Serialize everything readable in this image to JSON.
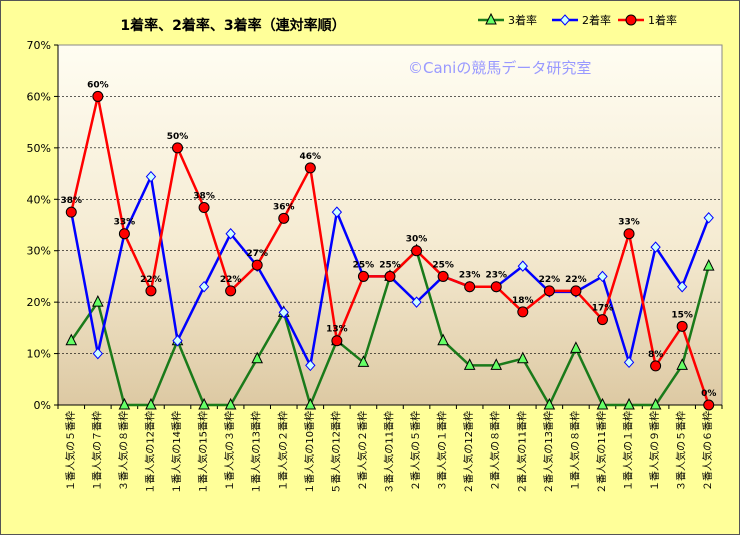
{
  "chart_data": {
    "type": "line",
    "title": "1着率、2着率、3着率（連対率順）",
    "watermark": "©Caniの競馬データ研究室",
    "ylim": [
      0,
      70
    ],
    "y_ticks": [
      "0%",
      "10%",
      "20%",
      "30%",
      "40%",
      "50%",
      "60%",
      "70%"
    ],
    "grid": true,
    "legend_position": "top-right",
    "categories": [
      "１番人気の５番枠",
      "１番人気の７番枠",
      "３番人気の８番枠",
      "１番人気の12番枠",
      "１番人気の14番枠",
      "１番人気の15番枠",
      "１番人気の３番枠",
      "１番人気の13番枠",
      "１番人気の２番枠",
      "１番人気の10番枠",
      "５番人気の12番枠",
      "２番人気の２番枠",
      "３番人気の11番枠",
      "２番人気の５番枠",
      "３番人気の１番枠",
      "２番人気の12番枠",
      "２番人気の８番枠",
      "２番人気の11番枠",
      "２番人気の13番枠",
      "１番人気の８番枠",
      "２番人気の11番枠",
      "１番人気の１番枠",
      "１番人気の９番枠",
      "３番人気の５番枠",
      "２番人気の６番枠"
    ],
    "series": [
      {
        "name": "3着率",
        "color": "#1a7a1a",
        "marker": "triangle",
        "values": [
          12.5,
          20,
          0,
          0,
          12.5,
          0,
          0,
          9,
          18,
          0,
          12.5,
          8.3,
          25,
          30,
          12.5,
          7.7,
          7.7,
          9,
          0,
          11,
          0,
          0,
          0,
          7.7,
          27
        ]
      },
      {
        "name": "2着率",
        "color": "#0000ff",
        "marker": "diamond",
        "values": [
          37.5,
          10,
          33.3,
          44.4,
          12.5,
          23,
          33.3,
          27,
          18,
          7.7,
          37.5,
          25,
          25,
          20,
          25,
          23,
          23,
          27,
          22,
          22,
          25,
          8.3,
          30.7,
          23,
          36.4
        ]
      },
      {
        "name": "1着率",
        "color": "#ff0000",
        "marker": "circle",
        "values": [
          37.5,
          60,
          33.3,
          22.2,
          50,
          38.4,
          22.2,
          27.2,
          36.3,
          46.1,
          12.5,
          25,
          25,
          30,
          25,
          23,
          23,
          18.1,
          22.2,
          22.2,
          16.6,
          33.3,
          7.6,
          15.3,
          0
        ],
        "labels": [
          "38%",
          "60%",
          "33%",
          "22%",
          "50%",
          "38%",
          "22%",
          "27%",
          "36%",
          "46%",
          "13%",
          "25%",
          "25%",
          "30%",
          "25%",
          "23%",
          "23%",
          "18%",
          "22%",
          "22%",
          "17%",
          "33%",
          "8%",
          "15%",
          "0%"
        ]
      }
    ]
  }
}
